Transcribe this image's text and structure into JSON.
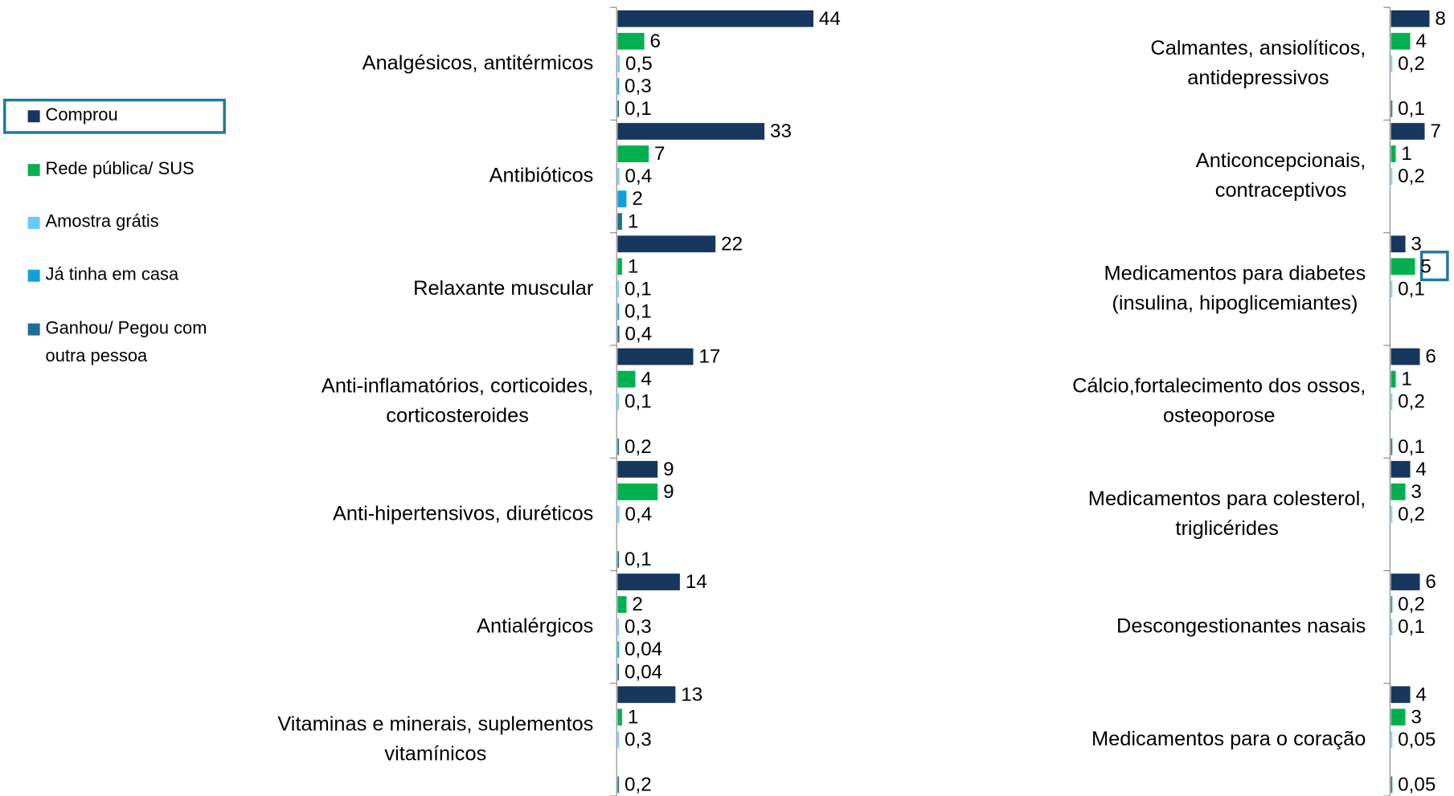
{
  "chart_data": [
    {
      "type": "bar",
      "categories": [
        "Analgésicos, antitérmicos",
        "Antibióticos",
        "Relaxante muscular",
        "Anti-inflamatórios, corticoides,\ncorticosteroides",
        "Anti-hipertensivos, diuréticos",
        "Antialérgicos",
        "Vitaminas e minerais, suplementos\nvitamínicos"
      ],
      "series": [
        {
          "name": "Comprou",
          "color": "#17375e",
          "values": [
            44,
            33,
            22,
            17,
            9,
            14,
            13
          ]
        },
        {
          "name": "Rede pública/ SUS",
          "color": "#00b050",
          "values": [
            6,
            7,
            1,
            4,
            9,
            2,
            1
          ]
        },
        {
          "name": "Amostra grátis",
          "color": "#66ccff",
          "values": [
            0.5,
            0.4,
            0.1,
            0.1,
            0.4,
            0.3,
            0.3
          ],
          "value_labels": [
            "0,5",
            "0,4",
            "0,1",
            "0,1",
            "0,4",
            "0,3",
            "0,3"
          ]
        },
        {
          "name": "Já tinha em casa",
          "color": "#12a0dc",
          "values": [
            0.3,
            2,
            0.1,
            null,
            null,
            0.04,
            null
          ],
          "value_labels": [
            "0,3",
            "2",
            "0,1",
            null,
            null,
            "0,04",
            null
          ]
        },
        {
          "name": "Ganhou/ Pegou com\noutra pessoa",
          "color": "#1b6f93",
          "values": [
            0.1,
            1,
            0.4,
            0.2,
            0.1,
            0.04,
            0.2
          ],
          "value_labels": [
            "0,1",
            "1",
            "0,4",
            "0,2",
            "0,1",
            "0,04",
            "0,2"
          ]
        }
      ]
    },
    {
      "type": "bar",
      "categories": [
        "Calmantes, ansiolíticos,\nantidepressivos",
        "Anticoncepcionais,\ncontraceptivos",
        "Medicamentos para diabetes\n(insulina, hipoglicemiantes)",
        "Cálcio,fortalecimento dos ossos,\nosteoporose",
        "Medicamentos para colesterol,\ntriglicérides",
        "Descongestionantes nasais",
        "Medicamentos para o coração"
      ],
      "series": [
        {
          "color": "#17375e",
          "values": [
            8,
            7,
            3,
            6,
            4,
            6,
            4
          ]
        },
        {
          "color": "#00b050",
          "values": [
            4,
            1,
            5,
            1,
            3,
            0.2,
            3
          ],
          "value_labels": [
            "4",
            "1",
            "5",
            "1",
            "3",
            "0,2",
            "3"
          ]
        },
        {
          "color": "#66ccff",
          "values": [
            0.2,
            0.2,
            0.1,
            0.2,
            0.2,
            0.1,
            0.05
          ],
          "value_labels": [
            "0,2",
            "0,2",
            "0,1",
            "0,2",
            "0,2",
            "0,1",
            "0,05"
          ]
        },
        {
          "color": "#12a0dc",
          "values": [
            null,
            null,
            null,
            null,
            null,
            null,
            null
          ]
        },
        {
          "color": "#1b6f93",
          "values": [
            0.1,
            null,
            null,
            0.1,
            null,
            null,
            0.05
          ],
          "value_labels": [
            "0,1",
            null,
            null,
            "0,1",
            null,
            null,
            "0,05"
          ]
        }
      ]
    }
  ]
}
